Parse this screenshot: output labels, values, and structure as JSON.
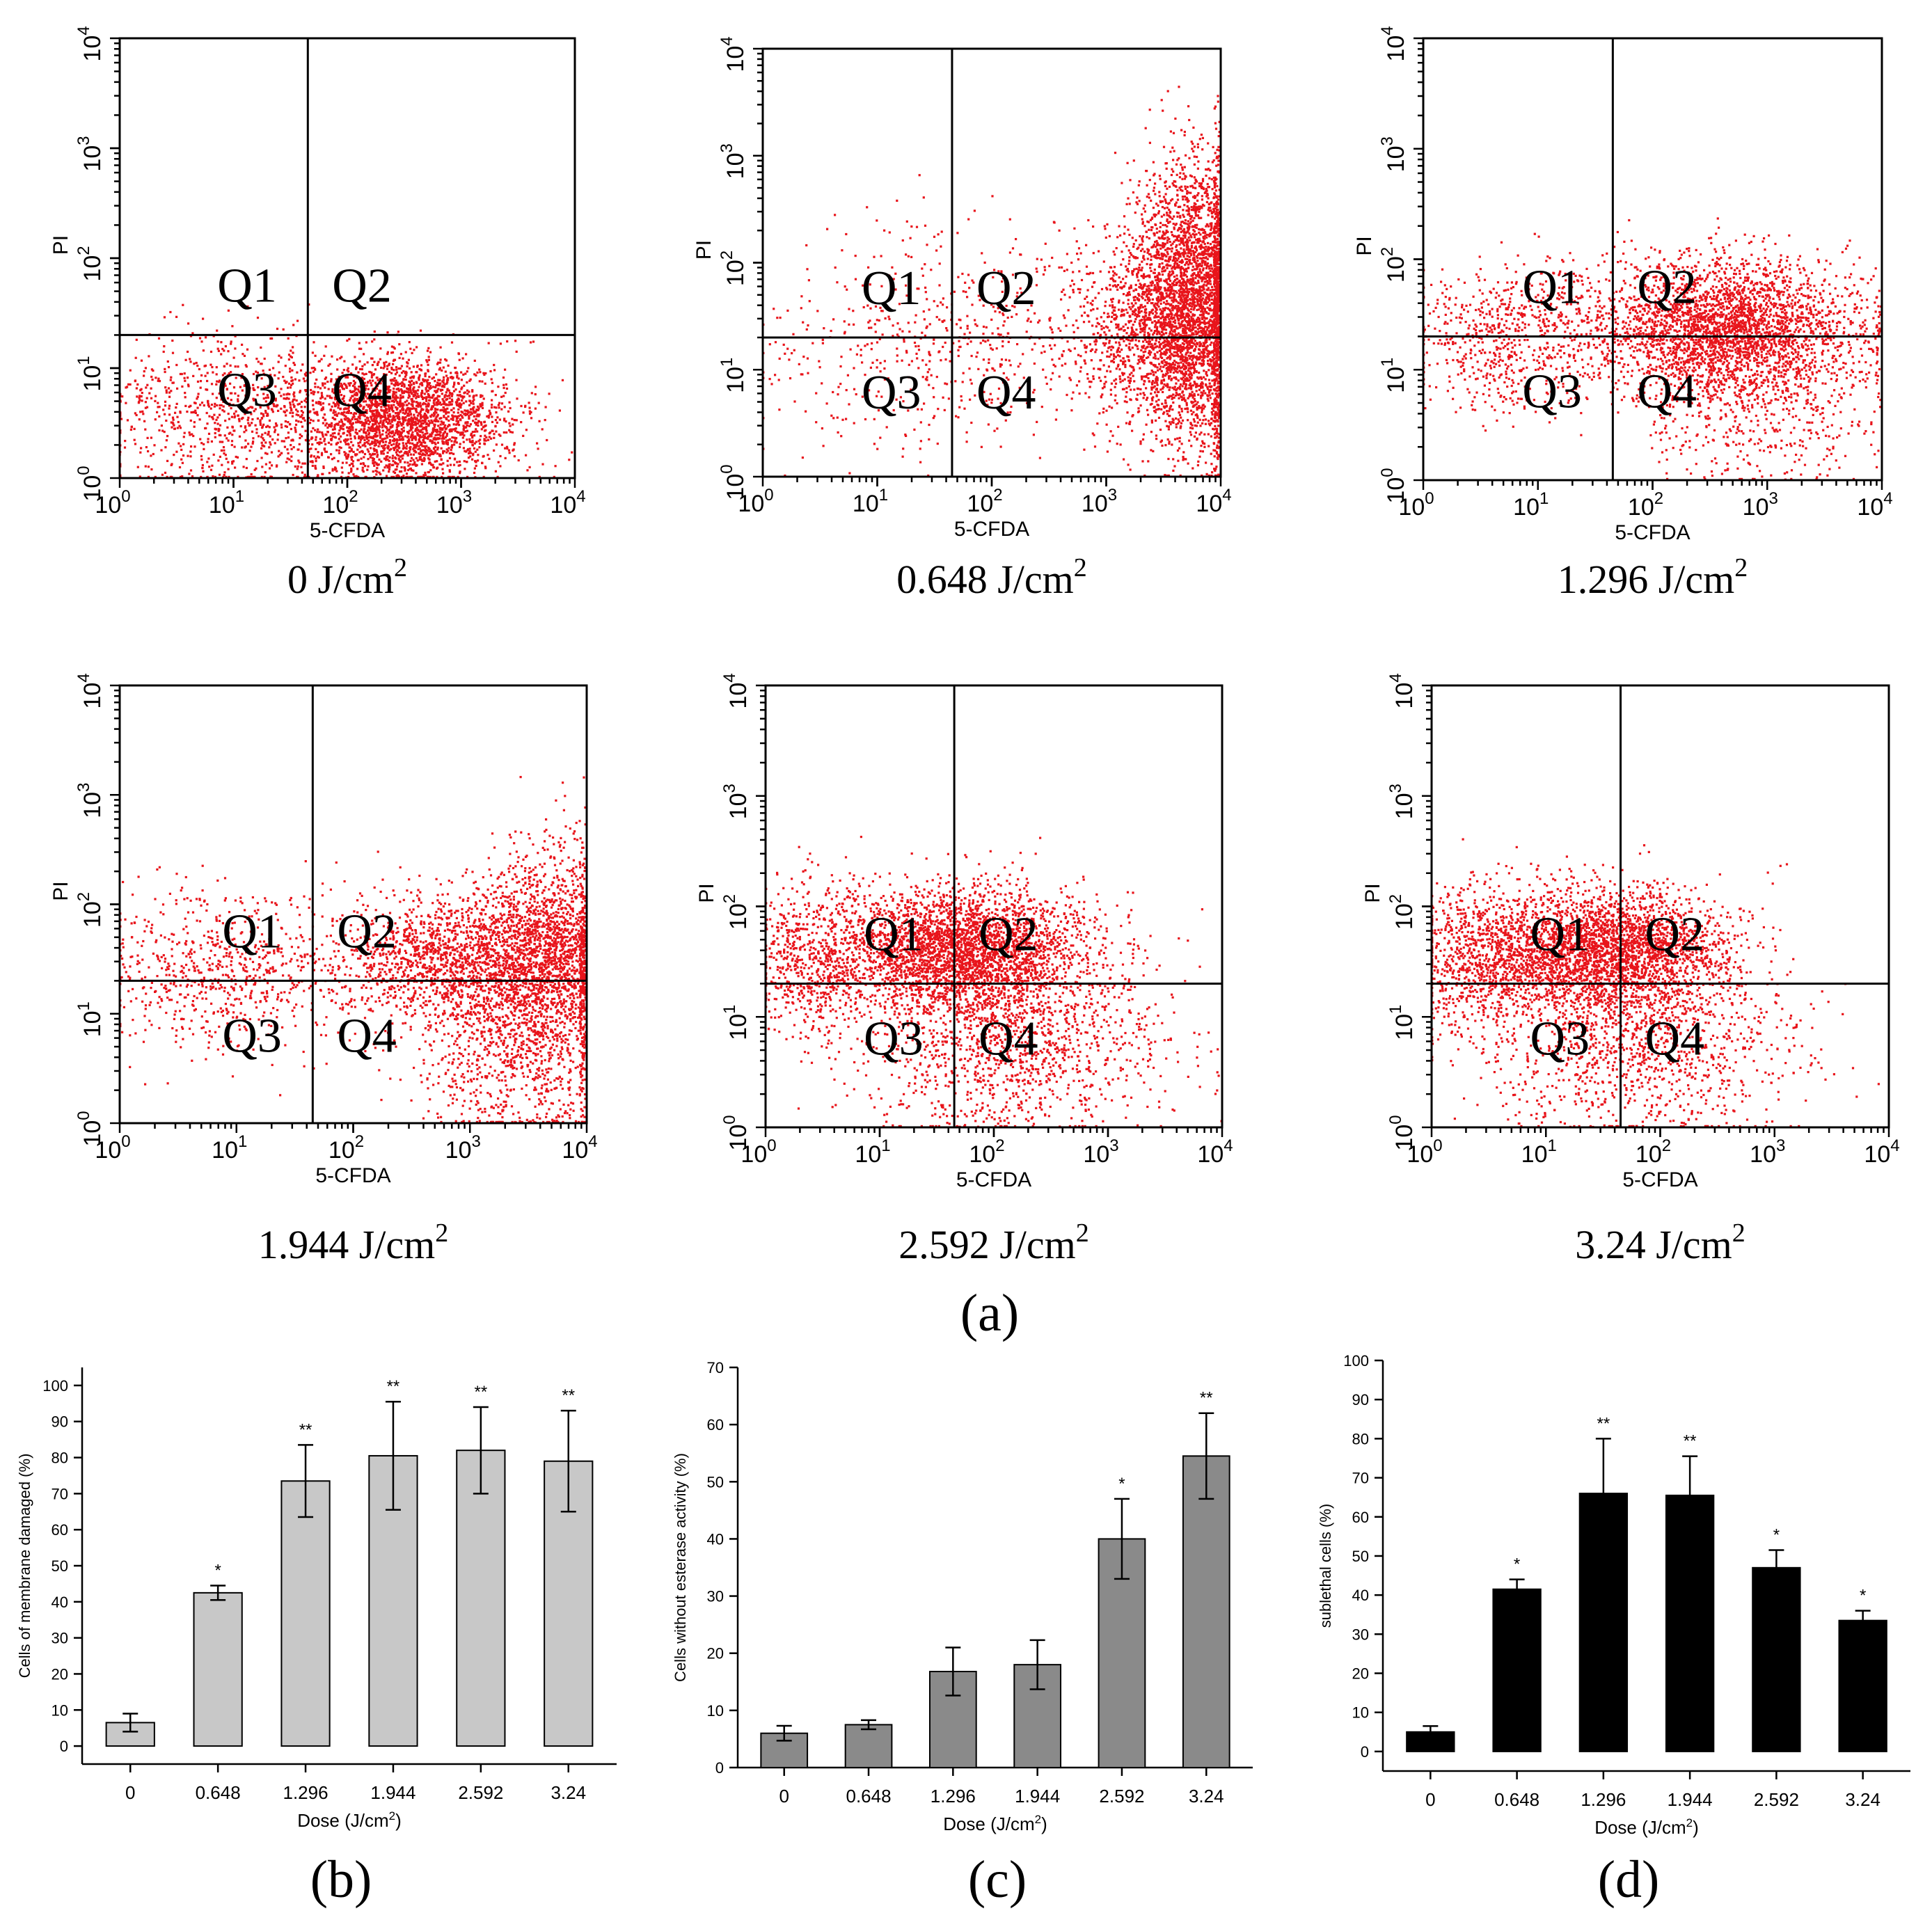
{
  "figure_labels": {
    "a": "(a)",
    "b": "(b)",
    "c": "(c)",
    "d": "(d)"
  },
  "colors": {
    "dots": "#e8141b",
    "bar_b": "#c8c8c8",
    "bar_c": "#8a8a8a",
    "bar_d": "#000000",
    "axis": "#000000"
  },
  "chart_data": [
    {
      "id": "scatter-0",
      "type": "scatter",
      "caption": "0 J/cm",
      "caption_sup": "2",
      "xlabel": "5-CFDA",
      "ylabel": "PI",
      "xscale": "log",
      "yscale": "log",
      "xlim": [
        1,
        10000
      ],
      "ylim": [
        1,
        10000
      ],
      "xticks": [
        "10",
        "10",
        "10",
        "10",
        "10"
      ],
      "xtick_exp": [
        "0",
        "1",
        "2",
        "3",
        "4"
      ],
      "yticks": [
        "10",
        "10",
        "10",
        "10",
        "10"
      ],
      "ytick_exp": [
        "0",
        "1",
        "2",
        "3",
        "4"
      ],
      "quadrant_labels": [
        "Q1",
        "Q2",
        "Q3",
        "Q4"
      ],
      "gate_x": 45,
      "gate_y": 20,
      "clusters": [
        {
          "cx": 2.5,
          "cy": 0.55,
          "sx": 0.45,
          "sy": 0.28,
          "n": 2600,
          "cap": 1.35
        },
        {
          "cx": 1.3,
          "cy": 0.55,
          "sx": 0.45,
          "sy": 0.35,
          "n": 500
        },
        {
          "cx": 0.6,
          "cy": 0.6,
          "sx": 0.5,
          "sy": 0.35,
          "n": 350
        }
      ]
    },
    {
      "id": "scatter-0648",
      "type": "scatter",
      "caption": "0.648 J/cm",
      "caption_sup": "2",
      "xlabel": "5-CFDA",
      "ylabel": "PI",
      "xscale": "log",
      "yscale": "log",
      "xlim": [
        1,
        10000
      ],
      "ylim": [
        1,
        10000
      ],
      "xticks": [
        "10",
        "10",
        "10",
        "10",
        "10"
      ],
      "xtick_exp": [
        "0",
        "1",
        "2",
        "3",
        "4"
      ],
      "yticks": [
        "10",
        "10",
        "10",
        "10",
        "10"
      ],
      "ytick_exp": [
        "0",
        "1",
        "2",
        "3",
        "4"
      ],
      "quadrant_labels": [
        "Q1",
        "Q2",
        "Q3",
        "Q4"
      ],
      "gate_x": 45,
      "gate_y": 20,
      "clusters": [
        {
          "cx": 3.75,
          "cy": 1.6,
          "sx": 0.25,
          "sy": 0.65,
          "n": 3200
        },
        {
          "cx": 3.3,
          "cy": 1.4,
          "sx": 0.35,
          "sy": 0.45,
          "n": 900
        },
        {
          "cx": 1.8,
          "cy": 1.3,
          "sx": 0.7,
          "sy": 0.5,
          "n": 500
        },
        {
          "cx": 0.8,
          "cy": 1.2,
          "sx": 0.5,
          "sy": 0.5,
          "n": 120
        }
      ]
    },
    {
      "id": "scatter-1296",
      "type": "scatter",
      "caption": "1.296 J/cm",
      "caption_sup": "2",
      "xlabel": "5-CFDA",
      "ylabel": "PI",
      "xscale": "log",
      "yscale": "log",
      "xlim": [
        1,
        10000
      ],
      "ylim": [
        1,
        10000
      ],
      "xticks": [
        "10",
        "10",
        "10",
        "10",
        "10"
      ],
      "xtick_exp": [
        "0",
        "1",
        "2",
        "3",
        "4"
      ],
      "yticks": [
        "10",
        "10",
        "10",
        "10",
        "10"
      ],
      "ytick_exp": [
        "0",
        "1",
        "2",
        "3",
        "4"
      ],
      "quadrant_labels": [
        "Q1",
        "Q2",
        "Q3",
        "Q4"
      ],
      "gate_x": 45,
      "gate_y": 20,
      "clusters": [
        {
          "cx": 2.6,
          "cy": 1.4,
          "sx": 0.6,
          "sy": 0.3,
          "n": 2600
        },
        {
          "cx": 2.9,
          "cy": 0.9,
          "sx": 0.5,
          "sy": 0.45,
          "n": 900
        },
        {
          "cx": 0.8,
          "cy": 1.3,
          "sx": 0.45,
          "sy": 0.35,
          "n": 700
        }
      ]
    },
    {
      "id": "scatter-1944",
      "type": "scatter",
      "caption": "1.944 J/cm",
      "caption_sup": "2",
      "xlabel": "5-CFDA",
      "ylabel": "PI",
      "xscale": "log",
      "yscale": "log",
      "xlim": [
        1,
        10000
      ],
      "ylim": [
        1,
        10000
      ],
      "xticks": [
        "10",
        "10",
        "10",
        "10",
        "10"
      ],
      "xtick_exp": [
        "0",
        "1",
        "2",
        "3",
        "4"
      ],
      "yticks": [
        "10",
        "10",
        "10",
        "10",
        "10"
      ],
      "ytick_exp": [
        "0",
        "1",
        "2",
        "3",
        "4"
      ],
      "quadrant_labels": [
        "Q1",
        "Q2",
        "Q3",
        "Q4"
      ],
      "gate_x": 45,
      "gate_y": 20,
      "clusters": [
        {
          "cx": 3.0,
          "cy": 1.5,
          "sx": 0.6,
          "sy": 0.3,
          "n": 2000
        },
        {
          "cx": 3.7,
          "cy": 1.6,
          "sx": 0.25,
          "sy": 0.5,
          "n": 1200
        },
        {
          "cx": 3.4,
          "cy": 0.7,
          "sx": 0.4,
          "sy": 0.45,
          "n": 900
        },
        {
          "cx": 0.9,
          "cy": 1.4,
          "sx": 0.5,
          "sy": 0.35,
          "n": 700
        }
      ]
    },
    {
      "id": "scatter-2592",
      "type": "scatter",
      "caption": "2.592 J/cm",
      "caption_sup": "2",
      "xlabel": "5-CFDA",
      "ylabel": "PI",
      "xscale": "log",
      "yscale": "log",
      "xlim": [
        1,
        10000
      ],
      "ylim": [
        1,
        10000
      ],
      "xticks": [
        "10",
        "10",
        "10",
        "10",
        "10"
      ],
      "xtick_exp": [
        "0",
        "1",
        "2",
        "3",
        "4"
      ],
      "yticks": [
        "10",
        "10",
        "10",
        "10",
        "10"
      ],
      "ytick_exp": [
        "0",
        "1",
        "2",
        "3",
        "4"
      ],
      "quadrant_labels": [
        "Q1",
        "Q2",
        "Q3",
        "Q4"
      ],
      "gate_x": 45,
      "gate_y": 20,
      "clusters": [
        {
          "cx": 1.7,
          "cy": 1.6,
          "sx": 0.55,
          "sy": 0.28,
          "n": 3200
        },
        {
          "cx": 2.2,
          "cy": 0.8,
          "sx": 0.7,
          "sy": 0.45,
          "n": 1300
        },
        {
          "cx": 0.4,
          "cy": 1.5,
          "sx": 0.3,
          "sy": 0.35,
          "n": 600
        }
      ]
    },
    {
      "id": "scatter-324",
      "type": "scatter",
      "caption": "3.24 J/cm",
      "caption_sup": "2",
      "xlabel": "5-CFDA",
      "ylabel": "PI",
      "xscale": "log",
      "yscale": "log",
      "xlim": [
        1,
        10000
      ],
      "ylim": [
        1,
        10000
      ],
      "xticks": [
        "10",
        "10",
        "10",
        "10",
        "10"
      ],
      "xtick_exp": [
        "0",
        "1",
        "2",
        "3",
        "4"
      ],
      "yticks": [
        "10",
        "10",
        "10",
        "10",
        "10"
      ],
      "ytick_exp": [
        "0",
        "1",
        "2",
        "3",
        "4"
      ],
      "quadrant_labels": [
        "Q1",
        "Q2",
        "Q3",
        "Q4"
      ],
      "gate_x": 45,
      "gate_y": 20,
      "clusters": [
        {
          "cx": 1.5,
          "cy": 1.6,
          "sx": 0.55,
          "sy": 0.28,
          "n": 3000
        },
        {
          "cx": 1.8,
          "cy": 0.8,
          "sx": 0.65,
          "sy": 0.45,
          "n": 1200
        },
        {
          "cx": 0.4,
          "cy": 1.5,
          "sx": 0.3,
          "sy": 0.35,
          "n": 700
        }
      ]
    },
    {
      "id": "bar-b",
      "type": "bar",
      "panel": "(b)",
      "xlabel": "Dose (J/cm",
      "xlabel_sup": "2",
      "xlabel_end": ")",
      "ylabel": "Cells of membrane damaged (%)",
      "categories": [
        "0",
        "0.648",
        "1.296",
        "1.944",
        "2.592",
        "3.24"
      ],
      "values": [
        6.5,
        42.5,
        73.5,
        80.5,
        82,
        79
      ],
      "errors": [
        2.5,
        2,
        10,
        15,
        12,
        14
      ],
      "significance": [
        "",
        "*",
        "**",
        "**",
        "**",
        "**"
      ],
      "ylim": [
        -5,
        105
      ],
      "yticks": [
        "0",
        "10",
        "20",
        "30",
        "40",
        "50",
        "60",
        "70",
        "80",
        "90",
        "100"
      ]
    },
    {
      "id": "bar-c",
      "type": "bar",
      "panel": "(c)",
      "xlabel": "Dose (J/cm",
      "xlabel_sup": "2",
      "xlabel_end": ")",
      "ylabel": "Cells without esterase activity (%)",
      "categories": [
        "0",
        "0.648",
        "1.296",
        "1.944",
        "2.592",
        "3.24"
      ],
      "values": [
        6,
        7.5,
        16.8,
        18,
        40,
        54.5
      ],
      "errors": [
        1.3,
        0.8,
        4.2,
        4.3,
        7,
        7.5
      ],
      "significance": [
        "",
        "",
        "",
        "",
        "*",
        "**"
      ],
      "ylim": [
        0,
        70
      ],
      "yticks": [
        "0",
        "10",
        "20",
        "30",
        "40",
        "50",
        "60",
        "70"
      ]
    },
    {
      "id": "bar-d",
      "type": "bar",
      "panel": "(d)",
      "xlabel": "Dose (J/cm",
      "xlabel_sup": "2",
      "xlabel_end": ")",
      "ylabel": "sublethal cells (%)",
      "categories": [
        "0",
        "0.648",
        "1.296",
        "1.944",
        "2.592",
        "3.24"
      ],
      "values": [
        5,
        41.5,
        66,
        65.5,
        47,
        33.5
      ],
      "errors": [
        1.5,
        2.5,
        14,
        10,
        4.5,
        2.5
      ],
      "significance": [
        "",
        "*",
        "**",
        "**",
        "*",
        "*"
      ],
      "ylim": [
        -5,
        100
      ],
      "yticks": [
        "0",
        "10",
        "20",
        "30",
        "40",
        "50",
        "60",
        "70",
        "80",
        "90",
        "100"
      ]
    }
  ]
}
